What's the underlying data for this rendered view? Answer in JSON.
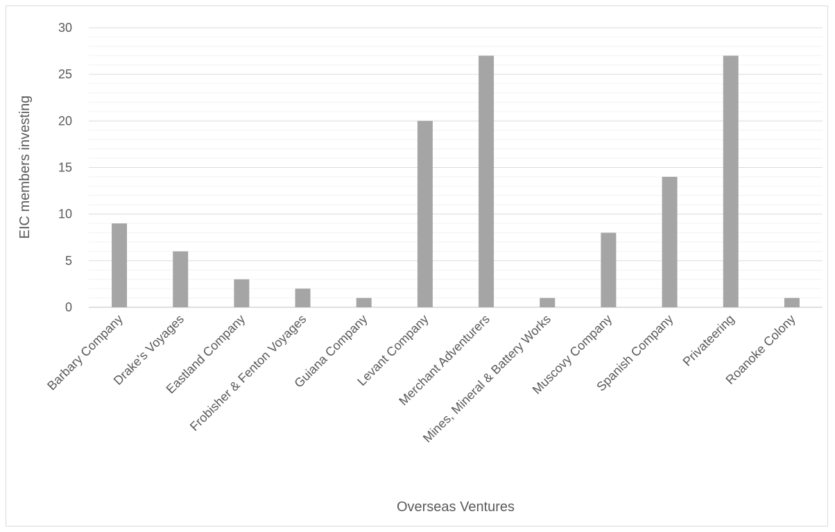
{
  "chart_data": {
    "type": "bar",
    "title": "",
    "xlabel": "Overseas Ventures",
    "ylabel": "EIC members investing",
    "categories": [
      "Barbary Company",
      "Drake's Voyages",
      "Eastland Company",
      "Frobisher & Fenton Voyages",
      "Guiana Company",
      "Levant Company",
      "Merchant Adventurers",
      "Mines, Mineral & Battery Works",
      "Muscovy Company",
      "Spanish Company",
      "Privateering",
      "Roanoke Colony"
    ],
    "values": [
      9,
      6,
      3,
      2,
      1,
      20,
      27,
      1,
      8,
      14,
      27,
      1
    ],
    "ylim": [
      0,
      30
    ],
    "major_ticks": [
      "0",
      "5",
      "10",
      "15",
      "20",
      "25",
      "30"
    ],
    "minor_gridlines": true,
    "grid": true,
    "legend": "none",
    "colors": {
      "bar": "#a5a5a5",
      "major_grid": "#d9d9d9",
      "minor_grid": "#f2f2f2",
      "text": "#595959",
      "frame": "#d9d9d9"
    }
  }
}
